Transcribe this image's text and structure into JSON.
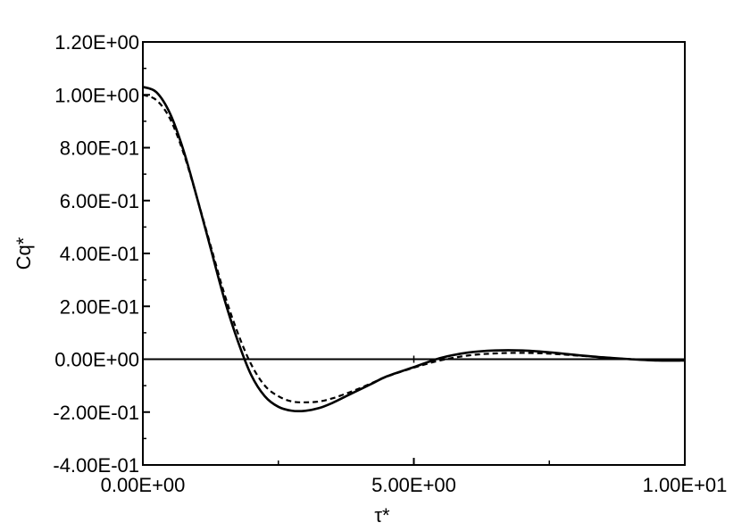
{
  "chart_data": {
    "type": "line",
    "title": "",
    "xlabel": "τ*",
    "ylabel": "Cq*",
    "xlim": [
      0,
      10
    ],
    "ylim": [
      -0.4,
      1.2
    ],
    "x_ticks": [
      {
        "value": 0,
        "label": "0.00E+00"
      },
      {
        "value": 5,
        "label": "5.00E+00"
      },
      {
        "value": 10,
        "label": "1.00E+01"
      }
    ],
    "y_ticks": [
      {
        "value": 1.2,
        "label": "1.20E+00"
      },
      {
        "value": 1.0,
        "label": "1.00E+00"
      },
      {
        "value": 0.8,
        "label": "8.00E-01"
      },
      {
        "value": 0.6,
        "label": "6.00E-01"
      },
      {
        "value": 0.4,
        "label": "4.00E-01"
      },
      {
        "value": 0.2,
        "label": "2.00E-01"
      },
      {
        "value": 0.0,
        "label": "0.00E+00"
      },
      {
        "value": -0.2,
        "label": "-2.00E-01"
      },
      {
        "value": -0.4,
        "label": "-4.00E-01"
      }
    ],
    "zero_line": true,
    "grid": false,
    "series": [
      {
        "style": "solid",
        "color": "#000000",
        "x": [
          0,
          0.25,
          0.5,
          0.75,
          1.0,
          1.25,
          1.5,
          1.75,
          2.0,
          2.25,
          2.5,
          2.75,
          3.0,
          3.25,
          3.5,
          3.75,
          4.0,
          4.25,
          4.5,
          5.0,
          5.5,
          6.0,
          6.5,
          7.0,
          7.5,
          8.0,
          8.5,
          9.0,
          9.5,
          10.0
        ],
        "y": [
          1.03,
          1.01,
          0.93,
          0.79,
          0.61,
          0.42,
          0.23,
          0.07,
          -0.06,
          -0.14,
          -0.18,
          -0.195,
          -0.195,
          -0.185,
          -0.165,
          -0.14,
          -0.115,
          -0.09,
          -0.065,
          -0.03,
          0.005,
          0.025,
          0.033,
          0.033,
          0.026,
          0.016,
          0.007,
          0.0,
          -0.005,
          -0.005
        ]
      },
      {
        "style": "dashed",
        "color": "#000000",
        "x": [
          0,
          0.25,
          0.5,
          0.75,
          1.0,
          1.25,
          1.5,
          1.75,
          2.0,
          2.25,
          2.5,
          2.75,
          3.0,
          3.25,
          3.5,
          3.75,
          4.0,
          4.25,
          4.5,
          5.0,
          5.5,
          6.0,
          6.5,
          7.0,
          7.5,
          8.0,
          8.5,
          9.0,
          9.5,
          10.0
        ],
        "y": [
          1.0,
          0.98,
          0.91,
          0.78,
          0.61,
          0.43,
          0.25,
          0.1,
          -0.02,
          -0.1,
          -0.14,
          -0.16,
          -0.163,
          -0.16,
          -0.148,
          -0.13,
          -0.11,
          -0.088,
          -0.066,
          -0.032,
          -0.004,
          0.014,
          0.022,
          0.024,
          0.021,
          0.014,
          0.007,
          0.0,
          -0.004,
          -0.005
        ]
      }
    ]
  }
}
